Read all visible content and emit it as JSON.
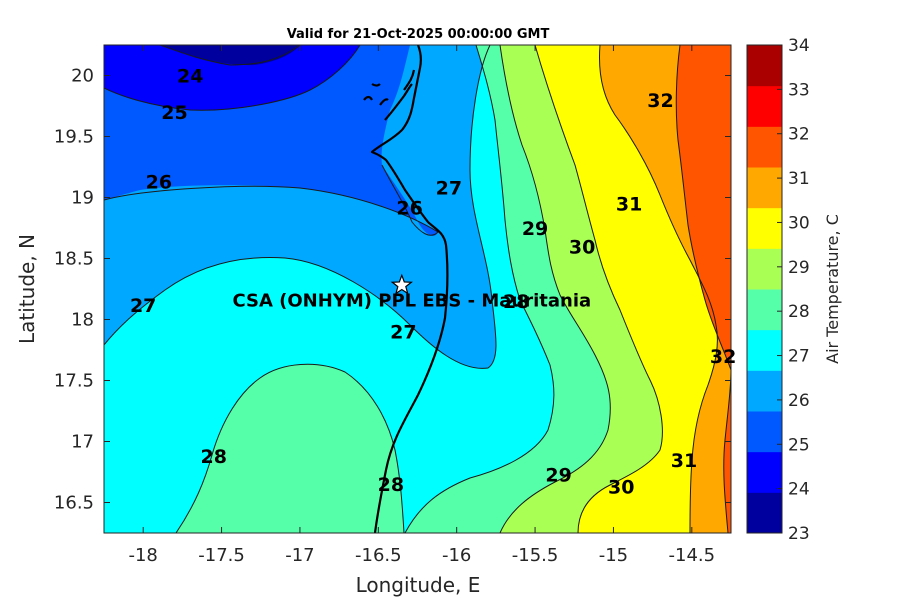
{
  "title": "Valid for 21-Oct-2025 00:00:00 GMT",
  "site_label": "CSA (ONHYM) PPL EBS  - Mauritania",
  "chart_data": {
    "type": "heatmap",
    "xlabel": "Longitude, E",
    "ylabel": "Latitude, N",
    "xlim": [
      -18.25,
      -14.25
    ],
    "ylim": [
      16.25,
      20.25
    ],
    "x_ticks": [
      "-18",
      "-17.5",
      "-17",
      "-16.5",
      "-16",
      "-15.5",
      "-15",
      "-14.5"
    ],
    "y_ticks": [
      "16.5",
      "17",
      "17.5",
      "18",
      "18.5",
      "19",
      "19.5",
      "20"
    ],
    "colorbar": {
      "label": "Air Temperature, C",
      "ticks": [
        "23",
        "24",
        "25",
        "26",
        "27",
        "28",
        "29",
        "30",
        "31",
        "32",
        "33",
        "34"
      ],
      "range": [
        23,
        34
      ],
      "colors": [
        "#00009f",
        "#0000ff",
        "#0059ff",
        "#00a8ff",
        "#00ffff",
        "#55ffaa",
        "#aaff55",
        "#ffff00",
        "#ffa800",
        "#ff5500",
        "#ff0000",
        "#aa0000"
      ]
    },
    "contour_labels": [
      {
        "text": "24",
        "lon": -17.7,
        "lat": 20.0
      },
      {
        "text": "25",
        "lon": -17.8,
        "lat": 19.7
      },
      {
        "text": "26",
        "lon": -17.9,
        "lat": 19.13
      },
      {
        "text": "26",
        "lon": -16.3,
        "lat": 18.92
      },
      {
        "text": "27",
        "lon": -16.05,
        "lat": 19.08
      },
      {
        "text": "27",
        "lon": -18.0,
        "lat": 18.12
      },
      {
        "text": "27",
        "lon": -16.34,
        "lat": 17.9
      },
      {
        "text": "28",
        "lon": -17.55,
        "lat": 16.88
      },
      {
        "text": "28",
        "lon": -16.42,
        "lat": 16.65
      },
      {
        "text": "28",
        "lon": -15.62,
        "lat": 18.15
      },
      {
        "text": "29",
        "lon": -15.5,
        "lat": 18.75
      },
      {
        "text": "29",
        "lon": -15.35,
        "lat": 16.73
      },
      {
        "text": "30",
        "lon": -15.2,
        "lat": 18.6
      },
      {
        "text": "30",
        "lon": -14.95,
        "lat": 16.63
      },
      {
        "text": "31",
        "lon": -14.9,
        "lat": 18.95
      },
      {
        "text": "31",
        "lon": -14.55,
        "lat": 16.85
      },
      {
        "text": "32",
        "lon": -14.7,
        "lat": 19.8
      },
      {
        "text": "32",
        "lon": -14.3,
        "lat": 17.7
      }
    ],
    "site": {
      "lon": -16.35,
      "lat": 18.28
    }
  }
}
